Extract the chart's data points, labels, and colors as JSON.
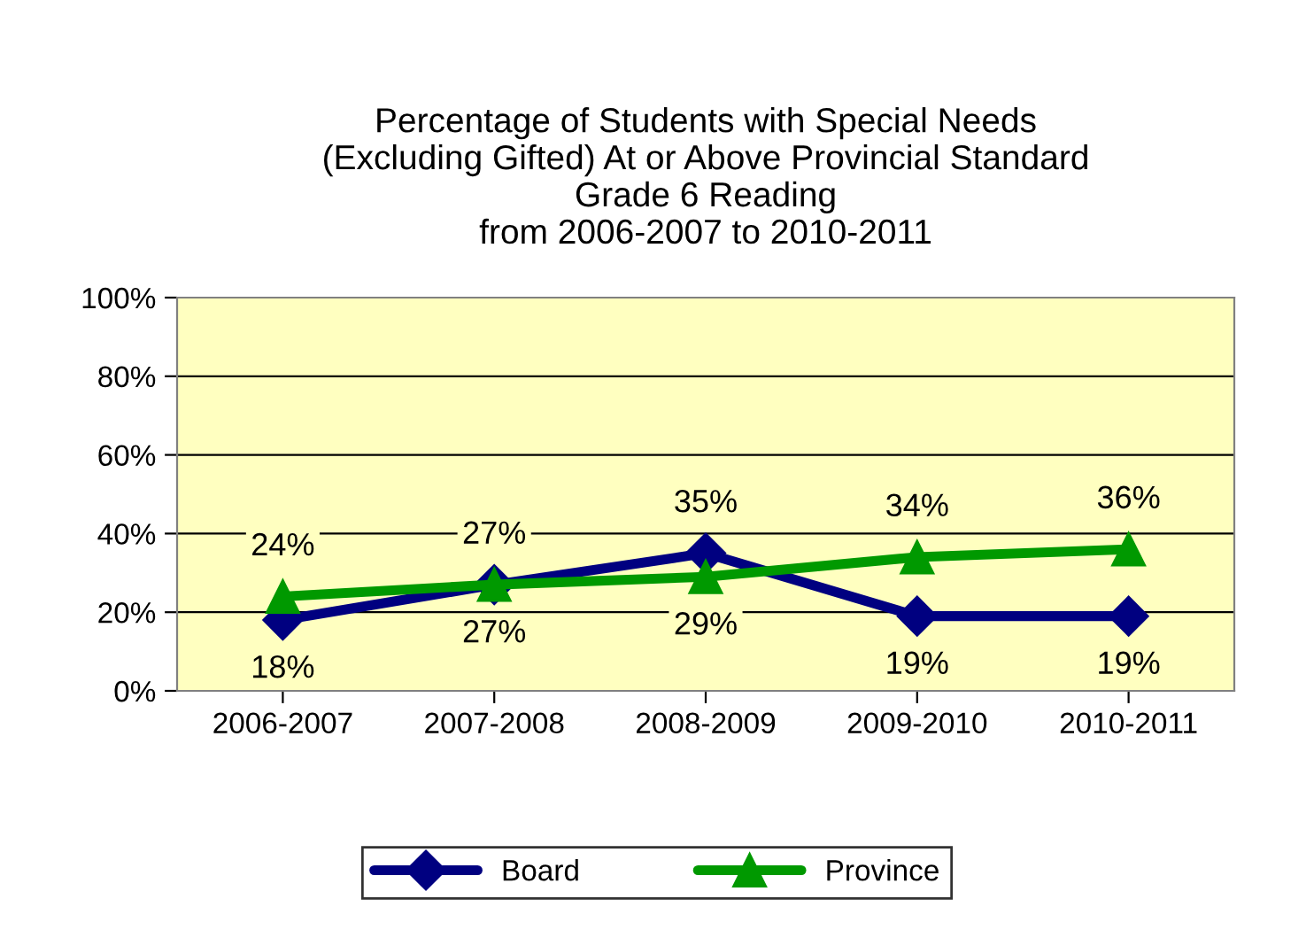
{
  "chart_data": {
    "type": "line",
    "title": "Percentage of Students with Special Needs\n(Excluding Gifted) At or Above Provincial Standard\nGrade 6 Reading\nfrom 2006-2007 to 2010-2011",
    "categories": [
      "2006-2007",
      "2007-2008",
      "2008-2009",
      "2009-2010",
      "2010-2011"
    ],
    "series": [
      {
        "name": "Board",
        "color": "#000080",
        "marker": "diamond",
        "values": [
          18,
          27,
          35,
          19,
          19
        ],
        "value_labels": [
          "18%",
          "27%",
          "35%",
          "19%",
          "19%"
        ]
      },
      {
        "name": "Province",
        "color": "#009900",
        "marker": "triangle",
        "values": [
          24,
          27,
          29,
          34,
          36
        ],
        "value_labels": [
          "24%",
          "27%",
          "29%",
          "34%",
          "36%"
        ]
      }
    ],
    "ylim": [
      0,
      100
    ],
    "yticks": [
      {
        "value": 0,
        "label": "0%"
      },
      {
        "value": 20,
        "label": "20%"
      },
      {
        "value": 40,
        "label": "40%"
      },
      {
        "value": 60,
        "label": "60%"
      },
      {
        "value": 80,
        "label": "80%"
      },
      {
        "value": 100,
        "label": "100%"
      }
    ],
    "grid": "y",
    "legend": "bottom"
  }
}
